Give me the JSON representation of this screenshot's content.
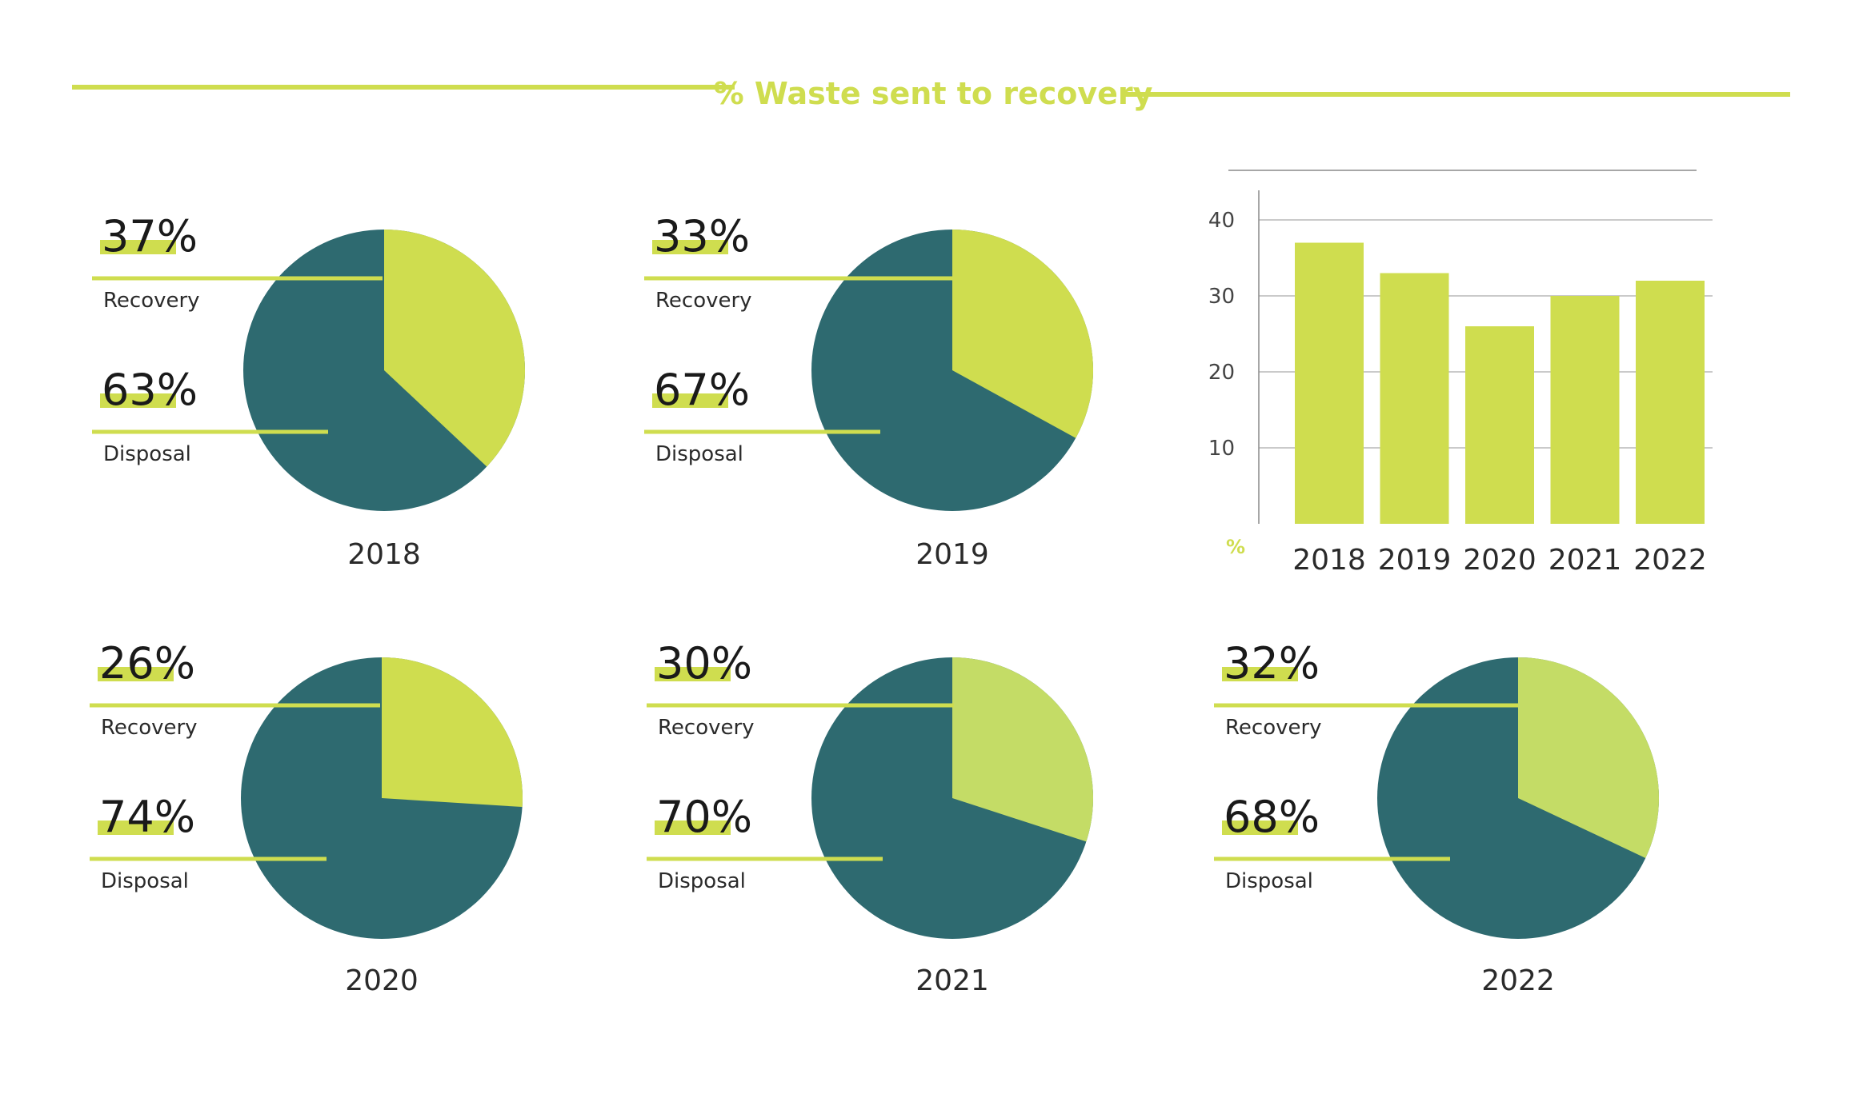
{
  "title": "% Waste sent to recovery",
  "colors": {
    "accent": "#cfdd4f",
    "recovery": "#cfdd4f",
    "recovery_light": "#c4dc66",
    "disposal": "#2e6a70",
    "grid": "#b8b8b8",
    "text": "#1a1a1a"
  },
  "labels": {
    "recovery": "Recovery",
    "disposal": "Disposal"
  },
  "chart_data": [
    {
      "type": "pie",
      "year": "2018",
      "recovery": 37,
      "disposal": 63,
      "recovery_label": "37%",
      "disposal_label": "63%"
    },
    {
      "type": "pie",
      "year": "2019",
      "recovery": 33,
      "disposal": 67,
      "recovery_label": "33%",
      "disposal_label": "67%"
    },
    {
      "type": "pie",
      "year": "2020",
      "recovery": 26,
      "disposal": 74,
      "recovery_label": "26%",
      "disposal_label": "74%"
    },
    {
      "type": "pie",
      "year": "2021",
      "recovery": 30,
      "disposal": 70,
      "recovery_label": "30%",
      "disposal_label": "70%"
    },
    {
      "type": "pie",
      "year": "2022",
      "recovery": 32,
      "disposal": 68,
      "recovery_label": "32%",
      "disposal_label": "68%"
    },
    {
      "type": "bar",
      "categories": [
        "2018",
        "2019",
        "2020",
        "2021",
        "2022"
      ],
      "values": [
        37,
        33,
        26,
        30,
        32
      ],
      "ylabel": "%",
      "ylim": [
        0,
        45
      ],
      "yticks": [
        10,
        20,
        30,
        40
      ],
      "grid": true
    }
  ]
}
